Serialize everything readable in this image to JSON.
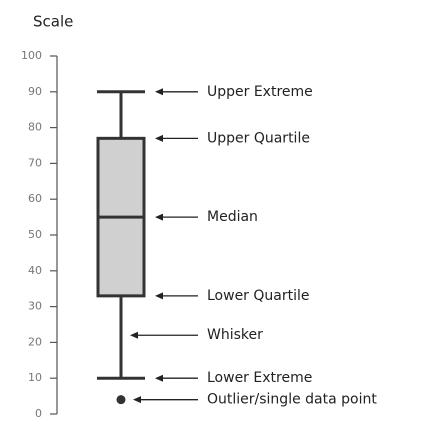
{
  "chart_data": {
    "type": "box",
    "y_label": "Scale",
    "ylim": [
      0,
      100
    ],
    "yticks": [
      0,
      10,
      20,
      30,
      40,
      50,
      60,
      70,
      80,
      90,
      100
    ],
    "min": 10,
    "q1": 33,
    "median": 55,
    "q3": 77,
    "max": 90,
    "outliers": [
      4
    ],
    "box_color": "#d0d0d0",
    "line_color": "#333333",
    "annotations": [
      {
        "text": "Upper Extreme",
        "y": 90
      },
      {
        "text": "Upper Quartile",
        "y": 77
      },
      {
        "text": "Median",
        "y": 55
      },
      {
        "text": "Lower Quartile",
        "y": 33
      },
      {
        "text": "Whisker",
        "y": 22
      },
      {
        "text": "Lower Extreme",
        "y": 10
      },
      {
        "text": "Outlier/single data point",
        "y": 4
      }
    ]
  }
}
